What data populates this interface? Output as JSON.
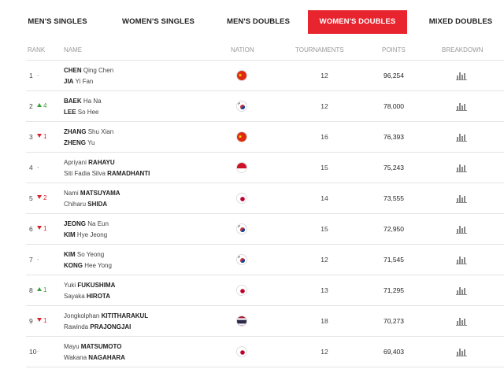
{
  "tabs": [
    {
      "label": "MEN'S SINGLES",
      "active": false
    },
    {
      "label": "WOMEN'S SINGLES",
      "active": false
    },
    {
      "label": "MEN'S DOUBLES",
      "active": false
    },
    {
      "label": "WOMEN'S DOUBLES",
      "active": true
    },
    {
      "label": "MIXED DOUBLES",
      "active": false
    }
  ],
  "columns": {
    "rank": "RANK",
    "name": "NAME",
    "nation": "NATION",
    "tournaments": "TOURNAMENTS",
    "points": "POINTS",
    "breakdown": "BREAKDOWN"
  },
  "colors": {
    "accent": "#e8242e",
    "up": "#3a9d3a",
    "down": "#d8232a"
  },
  "rows": [
    {
      "rank": "1",
      "move": "-",
      "dir": "same",
      "p1_sur": "CHEN",
      "p1_given": "Qing Chen",
      "p2_sur": "JIA",
      "p2_given": "Yi Fan",
      "nation": "china-flag-icon",
      "tournaments": "12",
      "points": "96,254"
    },
    {
      "rank": "2",
      "move": "4",
      "dir": "up",
      "p1_sur": "BAEK",
      "p1_given": "Ha Na",
      "p2_sur": "LEE",
      "p2_given": "So Hee",
      "nation": "korea-flag-icon",
      "tournaments": "12",
      "points": "78,000"
    },
    {
      "rank": "3",
      "move": "1",
      "dir": "down",
      "p1_sur": "ZHANG",
      "p1_given": "Shu Xian",
      "p2_sur": "ZHENG",
      "p2_given": "Yu",
      "nation": "china-flag-icon",
      "tournaments": "16",
      "points": "76,393"
    },
    {
      "rank": "4",
      "move": "-",
      "dir": "same",
      "p1_given": "Apriyani",
      "p1_sur": "RAHAYU",
      "p2_given": "Siti Fadia Silva",
      "p2_sur": "RAMADHANTI",
      "nation": "indonesia-flag-icon",
      "tournaments": "15",
      "points": "75,243"
    },
    {
      "rank": "5",
      "move": "2",
      "dir": "down",
      "p1_given": "Nami",
      "p1_sur": "MATSUYAMA",
      "p2_given": "Chiharu",
      "p2_sur": "SHIDA",
      "nation": "japan-flag-icon",
      "tournaments": "14",
      "points": "73,555"
    },
    {
      "rank": "6",
      "move": "1",
      "dir": "down",
      "p1_sur": "JEONG",
      "p1_given": "Na Eun",
      "p2_sur": "KIM",
      "p2_given": "Hye Jeong",
      "nation": "korea-flag-icon",
      "tournaments": "15",
      "points": "72,950"
    },
    {
      "rank": "7",
      "move": "-",
      "dir": "same",
      "p1_sur": "KIM",
      "p1_given": "So Yeong",
      "p2_sur": "KONG",
      "p2_given": "Hee Yong",
      "nation": "korea-flag-icon",
      "tournaments": "12",
      "points": "71,545"
    },
    {
      "rank": "8",
      "move": "1",
      "dir": "up",
      "p1_given": "Yuki",
      "p1_sur": "FUKUSHIMA",
      "p2_given": "Sayaka",
      "p2_sur": "HIROTA",
      "nation": "japan-flag-icon",
      "tournaments": "13",
      "points": "71,295"
    },
    {
      "rank": "9",
      "move": "1",
      "dir": "down",
      "p1_given": "Jongkolphan",
      "p1_sur": "KITITHARAKUL",
      "p2_given": "Rawinda",
      "p2_sur": "PRAJONGJAI",
      "nation": "thailand-flag-icon",
      "tournaments": "18",
      "points": "70,273"
    },
    {
      "rank": "10",
      "move": "-",
      "dir": "same",
      "p1_given": "Mayu",
      "p1_sur": "MATSUMOTO",
      "p2_given": "Wakana",
      "p2_sur": "NAGAHARA",
      "nation": "japan-flag-icon",
      "tournaments": "12",
      "points": "69,403"
    }
  ]
}
